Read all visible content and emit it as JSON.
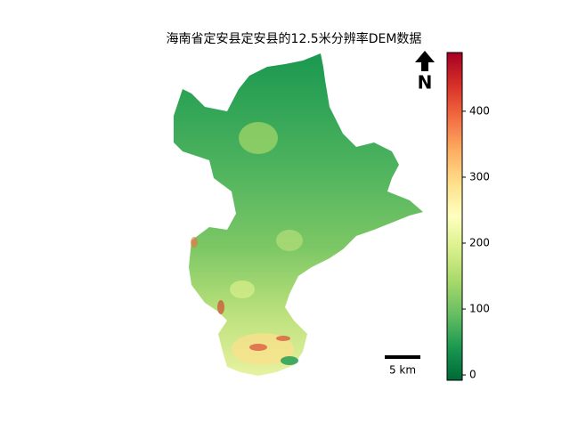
{
  "map": {
    "title": "海南省定安县定安县的12.5米分辨率DEM数据",
    "north_label": "N",
    "scale_label": "5 km",
    "colorbar": {
      "clim": [
        -8,
        489
      ],
      "ticks": [
        0,
        100,
        200,
        300,
        400
      ],
      "colors": [
        "#006837",
        "#1a9850",
        "#66bd63",
        "#a6d96a",
        "#d9ef8b",
        "#ffffbf",
        "#fee08b",
        "#fdae61",
        "#f46d43",
        "#d73027",
        "#a50026"
      ]
    }
  }
}
